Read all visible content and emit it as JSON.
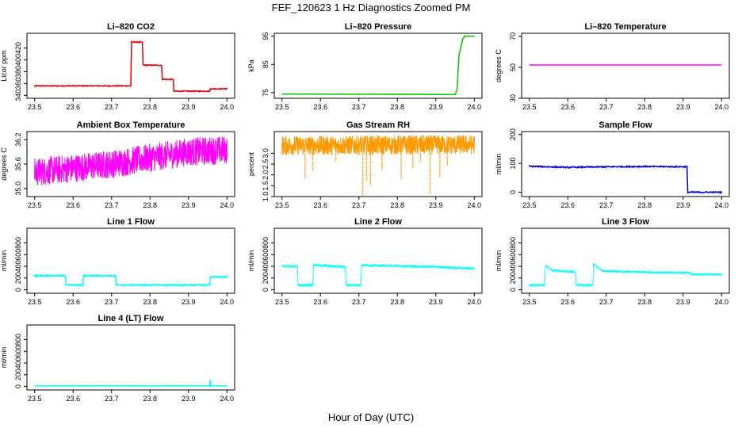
{
  "figure": {
    "title": "FEF_120623  1 Hz Diagnostics Zoomed PM",
    "xlabel": "Hour of Day (UTC)"
  },
  "colors": {
    "red": "#e00000",
    "green": "#00c800",
    "magenta": "#ff00ff",
    "orange": "#ff9900",
    "blue": "#0000cc",
    "cyan": "#00ffff"
  },
  "chart_data": [
    {
      "type": "line",
      "title": "Li–820 CO2",
      "ylabel": "Licor ppm",
      "xlim": [
        23.48,
        24.02
      ],
      "ylim": [
        335,
        445
      ],
      "xticks": [
        "23.5",
        "23.6",
        "23.7",
        "23.8",
        "23.9",
        "24.0"
      ],
      "yticks": [
        "340",
        "360",
        "380",
        "400",
        "420"
      ],
      "series": [
        {
          "color": "red",
          "noise": 0.8,
          "style": "line",
          "points": [
            [
              23.5,
              356
            ],
            [
              23.75,
              356
            ],
            [
              23.752,
              430
            ],
            [
              23.78,
              430
            ],
            [
              23.782,
              391
            ],
            [
              23.83,
              391
            ],
            [
              23.832,
              367
            ],
            [
              23.86,
              367
            ],
            [
              23.862,
              347
            ],
            [
              23.955,
              347
            ],
            [
              23.957,
              351
            ],
            [
              24.0,
              351
            ]
          ]
        }
      ]
    },
    {
      "type": "line",
      "title": "Li–820 Pressure",
      "ylabel": "kPa",
      "xlim": [
        23.48,
        24.02
      ],
      "ylim": [
        73,
        96
      ],
      "xticks": [
        "23.5",
        "23.6",
        "23.7",
        "23.8",
        "23.9",
        "24.0"
      ],
      "yticks": [
        "75",
        "85",
        "95"
      ],
      "series": [
        {
          "color": "green",
          "noise": 0.05,
          "style": "line",
          "points": [
            [
              23.5,
              74.5
            ],
            [
              23.85,
              74.4
            ],
            [
              23.95,
              74.3
            ],
            [
              23.955,
              76
            ],
            [
              23.96,
              88
            ],
            [
              23.97,
              94
            ],
            [
              23.975,
              95
            ],
            [
              24.0,
              95
            ]
          ]
        }
      ]
    },
    {
      "type": "line",
      "title": "Li–820 Temperature",
      "ylabel": "degrees C",
      "xlim": [
        23.48,
        24.02
      ],
      "ylim": [
        30,
        72
      ],
      "xticks": [
        "23.5",
        "23.6",
        "23.7",
        "23.8",
        "23.9",
        "24.0"
      ],
      "yticks": [
        "30",
        "50",
        "70"
      ],
      "series": [
        {
          "color": "magenta",
          "noise": 0,
          "style": "line",
          "points": [
            [
              23.5,
              51.5
            ],
            [
              24.0,
              51.5
            ]
          ]
        }
      ]
    },
    {
      "type": "line",
      "title": "Ambient Box Temperature",
      "ylabel": "degrees C",
      "xlim": [
        23.48,
        24.02
      ],
      "ylim": [
        34.8,
        36.4
      ],
      "xticks": [
        "23.5",
        "23.6",
        "23.7",
        "23.8",
        "23.9",
        "24.0"
      ],
      "yticks": [
        "35.0",
        "35.6",
        "36.2"
      ],
      "series": [
        {
          "color": "magenta",
          "noise": 0.35,
          "style": "band",
          "points": [
            [
              23.5,
              35.4
            ],
            [
              23.7,
              35.6
            ],
            [
              23.8,
              35.75
            ],
            [
              23.9,
              35.9
            ],
            [
              24.0,
              35.95
            ]
          ]
        }
      ]
    },
    {
      "type": "line",
      "title": "Gas Stream RH",
      "ylabel": "percent",
      "xlim": [
        23.48,
        24.02
      ],
      "ylim": [
        1.0,
        4.0
      ],
      "xticks": [
        "23.5",
        "23.6",
        "23.7",
        "23.8",
        "23.9",
        "24.0"
      ],
      "yticks": [
        "1.0",
        "1.5",
        "2.0",
        "2.5",
        "3.0"
      ],
      "series": [
        {
          "color": "orange",
          "noise": 0.45,
          "style": "band",
          "points": [
            [
              23.5,
              3.35
            ],
            [
              24.0,
              3.4
            ]
          ]
        }
      ],
      "spikes": [
        [
          23.56,
          1.8
        ],
        [
          23.58,
          2.2
        ],
        [
          23.64,
          2.6
        ],
        [
          23.71,
          1.0
        ],
        [
          23.72,
          1.7
        ],
        [
          23.73,
          1.5
        ],
        [
          23.76,
          2.2
        ],
        [
          23.81,
          1.8
        ],
        [
          23.84,
          2.3
        ],
        [
          23.86,
          2.6
        ],
        [
          23.885,
          1.1
        ],
        [
          23.91,
          1.9
        ],
        [
          23.93,
          2.4
        ]
      ]
    },
    {
      "type": "line",
      "title": "Sample Flow",
      "ylabel": "ml/min",
      "xlim": [
        23.48,
        24.02
      ],
      "ylim": [
        -15,
        210
      ],
      "xticks": [
        "23.5",
        "23.6",
        "23.7",
        "23.8",
        "23.9",
        "24.0"
      ],
      "yticks": [
        "0",
        "100",
        "200"
      ],
      "series": [
        {
          "color": "blue",
          "noise": 2,
          "style": "line",
          "points": [
            [
              23.5,
              90
            ],
            [
              23.6,
              86
            ],
            [
              23.7,
              88
            ],
            [
              23.8,
              89
            ],
            [
              23.91,
              88
            ],
            [
              23.912,
              0
            ],
            [
              24.0,
              0
            ]
          ]
        }
      ]
    },
    {
      "type": "line",
      "title": "Line 1 Flow",
      "ylabel": "ml/min",
      "xlim": [
        23.48,
        24.02
      ],
      "ylim": [
        -60,
        1050
      ],
      "xticks": [
        "23.5",
        "23.6",
        "23.7",
        "23.8",
        "23.9",
        "24.0"
      ],
      "yticks": [
        "0",
        "200",
        "400",
        "600",
        "800"
      ],
      "series": [
        {
          "color": "cyan",
          "noise": 12,
          "style": "line",
          "points": [
            [
              23.5,
              240
            ],
            [
              23.58,
              240
            ],
            [
              23.582,
              80
            ],
            [
              23.625,
              80
            ],
            [
              23.627,
              240
            ],
            [
              23.71,
              240
            ],
            [
              23.712,
              80
            ],
            [
              23.955,
              80
            ],
            [
              23.957,
              220
            ],
            [
              24.0,
              220
            ]
          ]
        }
      ]
    },
    {
      "type": "line",
      "title": "Line 2 Flow",
      "ylabel": "ml/min",
      "xlim": [
        23.48,
        24.02
      ],
      "ylim": [
        -60,
        1050
      ],
      "xticks": [
        "23.5",
        "23.6",
        "23.7",
        "23.8",
        "23.9",
        "24.0"
      ],
      "yticks": [
        "0",
        "200",
        "400",
        "600",
        "800"
      ],
      "series": [
        {
          "color": "cyan",
          "noise": 20,
          "style": "band",
          "points": [
            [
              23.5,
              400
            ],
            [
              23.54,
              400
            ],
            [
              23.542,
              80
            ],
            [
              23.58,
              80
            ],
            [
              23.582,
              420
            ],
            [
              23.665,
              390
            ],
            [
              23.667,
              80
            ],
            [
              23.705,
              80
            ],
            [
              23.707,
              420
            ],
            [
              23.9,
              390
            ],
            [
              24.0,
              360
            ]
          ]
        }
      ]
    },
    {
      "type": "line",
      "title": "Line 3 Flow",
      "ylabel": "ml/min",
      "xlim": [
        23.48,
        24.02
      ],
      "ylim": [
        -60,
        1050
      ],
      "xticks": [
        "23.5",
        "23.6",
        "23.7",
        "23.8",
        "23.9",
        "24.0"
      ],
      "yticks": [
        "0",
        "200",
        "400",
        "600",
        "800"
      ],
      "series": [
        {
          "color": "cyan",
          "noise": 15,
          "style": "band",
          "points": [
            [
              23.5,
              80
            ],
            [
              23.54,
              80
            ],
            [
              23.542,
              420
            ],
            [
              23.56,
              330
            ],
            [
              23.62,
              300
            ],
            [
              23.622,
              80
            ],
            [
              23.665,
              80
            ],
            [
              23.667,
              440
            ],
            [
              23.69,
              320
            ],
            [
              23.8,
              300
            ],
            [
              23.92,
              290
            ],
            [
              23.922,
              260
            ],
            [
              24.0,
              260
            ]
          ]
        }
      ]
    },
    {
      "type": "line",
      "title": "Line 4 (LT) Flow",
      "ylabel": "ml/min",
      "xlim": [
        23.48,
        24.02
      ],
      "ylim": [
        -60,
        1050
      ],
      "xticks": [
        "23.5",
        "23.6",
        "23.7",
        "23.8",
        "23.9",
        "24.0"
      ],
      "yticks": [
        "0",
        "200",
        "400",
        "600",
        "800"
      ],
      "series": [
        {
          "color": "cyan",
          "noise": 2,
          "style": "line",
          "points": [
            [
              23.5,
              10
            ],
            [
              23.955,
              10
            ],
            [
              23.956,
              110
            ],
            [
              23.958,
              10
            ],
            [
              24.0,
              10
            ]
          ]
        }
      ]
    }
  ]
}
